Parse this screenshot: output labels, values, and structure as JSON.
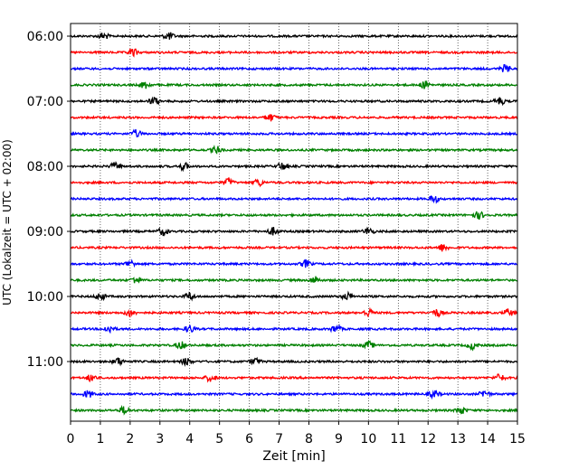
{
  "chart_data": {
    "type": "line",
    "xlabel": "Zeit  [min]",
    "ylabel": "UTC (Lokalzeit = UTC + 02:00)",
    "xlim": [
      0,
      15
    ],
    "x_ticks": [
      "0",
      "1",
      "2",
      "3",
      "4",
      "5",
      "6",
      "7",
      "8",
      "9",
      "10",
      "11",
      "12",
      "13",
      "14",
      "15"
    ],
    "y_ticks": [
      "06:00",
      "07:00",
      "08:00",
      "09:00",
      "10:00",
      "11:00"
    ],
    "grid": "vertical dotted lines at each minute",
    "trace_interval_minutes": 15,
    "trace_start": "06:00",
    "trace_count": 24,
    "series_colors": [
      "#000000",
      "#ff0000",
      "#0000ff",
      "#008000"
    ],
    "series": [
      {
        "start": "06:00",
        "color": "#000000",
        "events_min": [
          1.1,
          3.3
        ]
      },
      {
        "start": "06:15",
        "color": "#ff0000",
        "events_min": [
          2.1
        ]
      },
      {
        "start": "06:30",
        "color": "#0000ff",
        "events_min": [
          14.6
        ]
      },
      {
        "start": "06:45",
        "color": "#008000",
        "events_min": [
          2.5,
          11.9
        ]
      },
      {
        "start": "07:00",
        "color": "#000000",
        "events_min": [
          2.8,
          14.4
        ]
      },
      {
        "start": "07:15",
        "color": "#ff0000",
        "events_min": [
          6.7
        ]
      },
      {
        "start": "07:30",
        "color": "#0000ff",
        "events_min": [
          2.2
        ]
      },
      {
        "start": "07:45",
        "color": "#008000",
        "events_min": [
          4.9
        ]
      },
      {
        "start": "08:00",
        "color": "#000000",
        "events_min": [
          1.5,
          3.8,
          7.1
        ]
      },
      {
        "start": "08:15",
        "color": "#ff0000",
        "events_min": [
          5.3,
          6.3
        ]
      },
      {
        "start": "08:30",
        "color": "#0000ff",
        "events_min": [
          12.2
        ]
      },
      {
        "start": "08:45",
        "color": "#008000",
        "events_min": [
          13.7
        ]
      },
      {
        "start": "09:00",
        "color": "#000000",
        "events_min": [
          3.1,
          6.8,
          10.0
        ]
      },
      {
        "start": "09:15",
        "color": "#ff0000",
        "events_min": [
          12.5
        ]
      },
      {
        "start": "09:30",
        "color": "#0000ff",
        "events_min": [
          2.0,
          7.9
        ]
      },
      {
        "start": "09:45",
        "color": "#008000",
        "events_min": [
          2.2,
          8.2
        ]
      },
      {
        "start": "10:00",
        "color": "#000000",
        "events_min": [
          1.0,
          4.0,
          9.3
        ]
      },
      {
        "start": "10:15",
        "color": "#ff0000",
        "events_min": [
          2.0,
          10.0,
          12.3,
          14.7
        ]
      },
      {
        "start": "10:30",
        "color": "#0000ff",
        "events_min": [
          1.3,
          4.0,
          8.9
        ]
      },
      {
        "start": "10:45",
        "color": "#008000",
        "events_min": [
          3.7,
          10.0,
          13.5
        ]
      },
      {
        "start": "11:00",
        "color": "#000000",
        "events_min": [
          1.6,
          3.9,
          6.2
        ]
      },
      {
        "start": "11:15",
        "color": "#ff0000",
        "events_min": [
          0.7,
          4.7,
          14.4
        ]
      },
      {
        "start": "11:30",
        "color": "#0000ff",
        "events_min": [
          0.6,
          12.2,
          13.9
        ]
      },
      {
        "start": "11:45",
        "color": "#008000",
        "events_min": [
          1.8,
          13.1
        ]
      }
    ]
  }
}
